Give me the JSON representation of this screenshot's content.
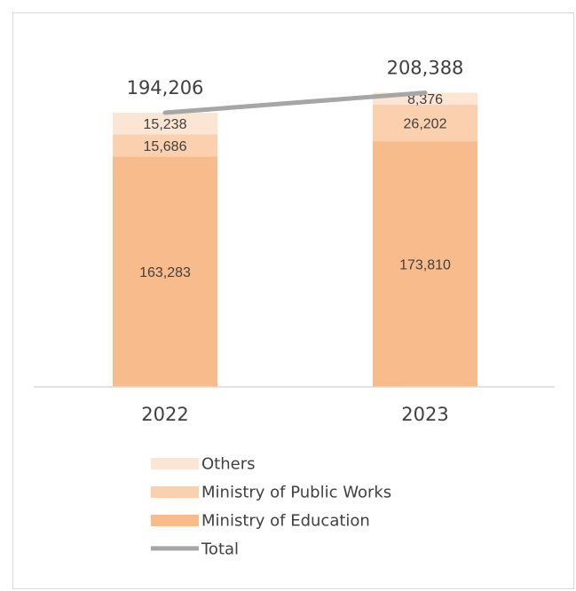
{
  "chart_data": {
    "type": "bar",
    "stacked": true,
    "categories": [
      "2022",
      "2023"
    ],
    "series": [
      {
        "name": "Ministry of Education",
        "values": [
          163283,
          173810
        ],
        "value_labels": [
          "163,283",
          "173,810"
        ],
        "color": "#f8bc8c"
      },
      {
        "name": "Ministry of Public Works",
        "values": [
          15686,
          26202
        ],
        "value_labels": [
          "15,686",
          "26,202"
        ],
        "color": "#fad0ae"
      },
      {
        "name": "Others",
        "values": [
          15238,
          8376
        ],
        "value_labels": [
          "15,238",
          "8,376"
        ],
        "color": "#fde5d3"
      }
    ],
    "total": {
      "name": "Total",
      "values": [
        194206,
        208388
      ],
      "value_labels": [
        "194,206",
        "208,388"
      ],
      "color": "#a6a6a6"
    },
    "legend": {
      "position": "bottom",
      "order": [
        "Others",
        "Ministry of Public Works",
        "Ministry of Education",
        "Total"
      ]
    },
    "ylim": [
      0,
      220000
    ],
    "grid": false
  }
}
